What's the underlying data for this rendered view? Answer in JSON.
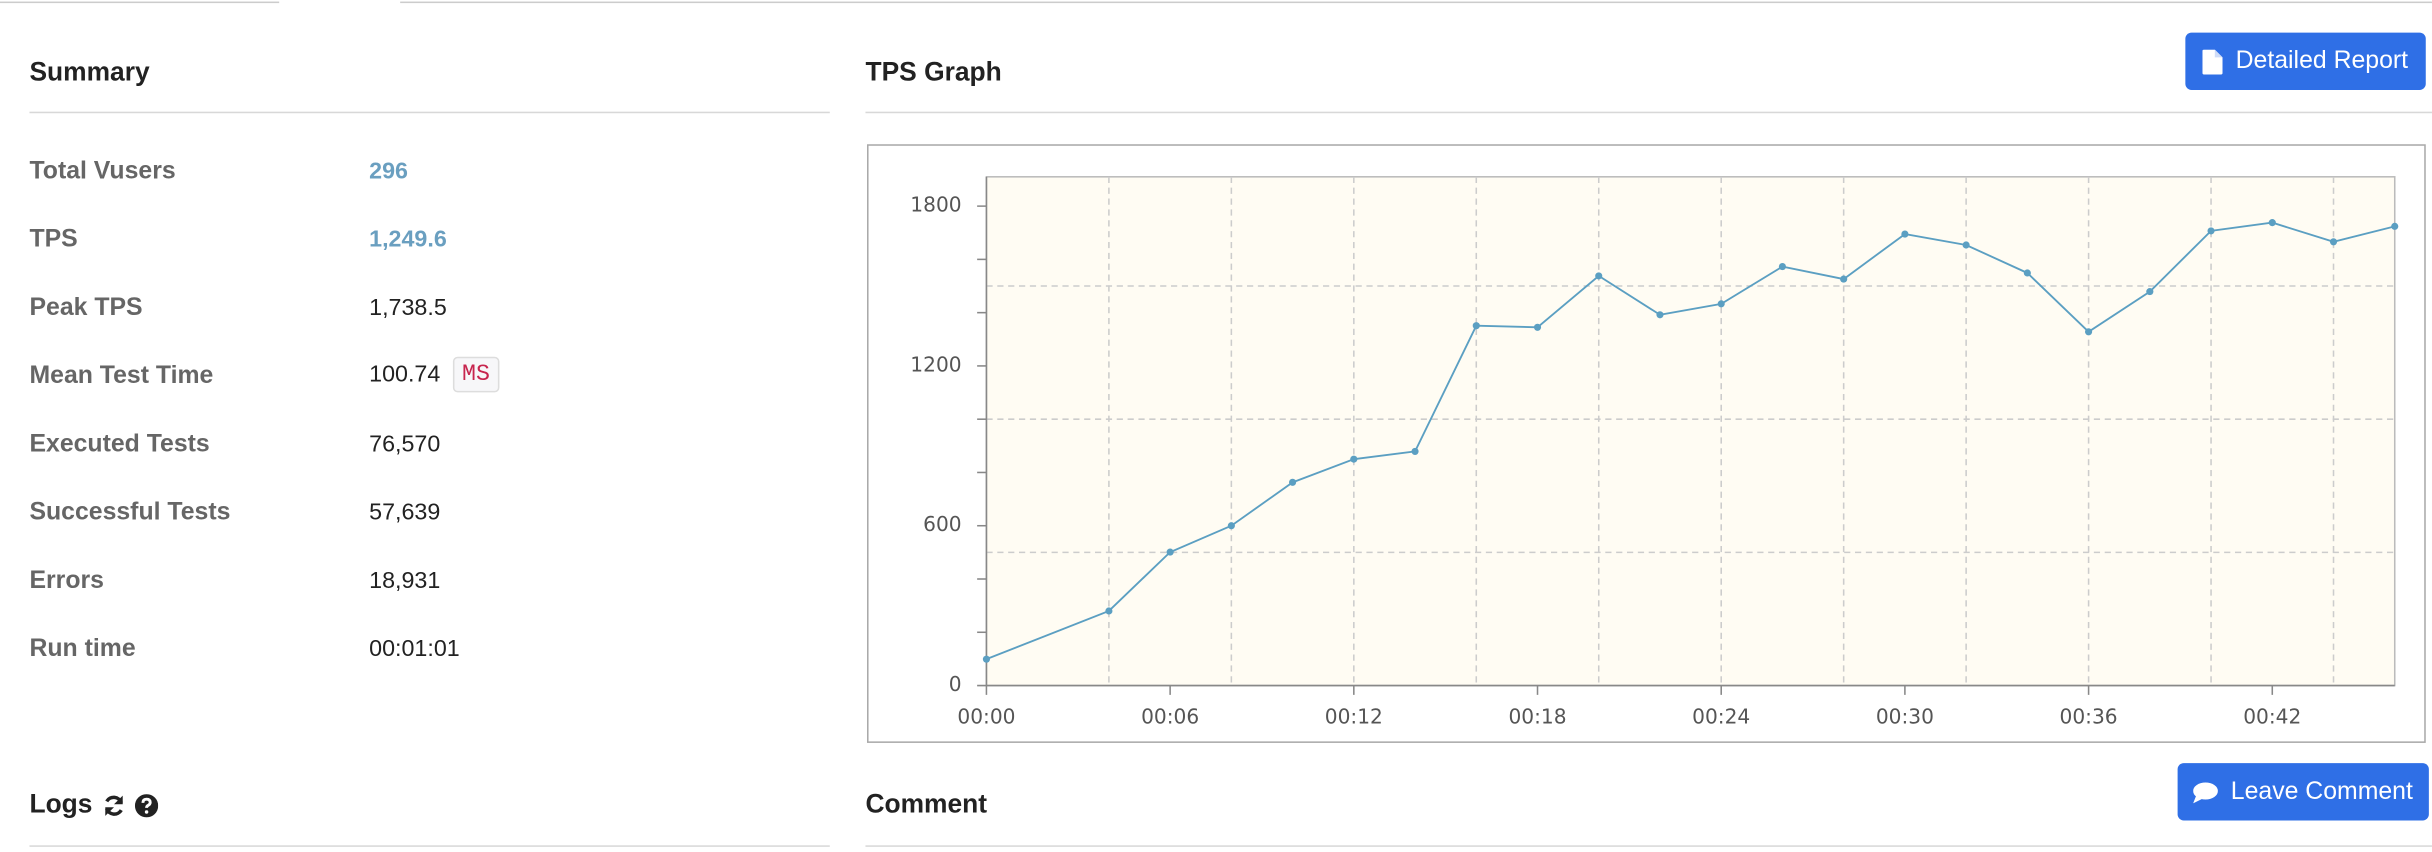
{
  "summary": {
    "title": "Summary",
    "rows": [
      {
        "label": "Total Vusers",
        "value": "296"
      },
      {
        "label": "TPS",
        "value": "1,249.6"
      },
      {
        "label": "Peak TPS",
        "value": "1,738.5"
      },
      {
        "label": "Mean Test Time",
        "value": "100.74",
        "unit": "MS"
      },
      {
        "label": "Executed Tests",
        "value": "76,570"
      },
      {
        "label": "Successful Tests",
        "value": "57,639"
      },
      {
        "label": "Errors",
        "value": "18,931"
      },
      {
        "label": "Run time",
        "value": "00:01:01"
      }
    ]
  },
  "tps_graph": {
    "title": "TPS Graph",
    "button": "Detailed Report"
  },
  "logs": {
    "title": "Logs"
  },
  "comment": {
    "title": "Comment",
    "button": "Leave Comment"
  },
  "chart_data": {
    "type": "line",
    "x": [
      0,
      4,
      6,
      8,
      10,
      12,
      14,
      16,
      18,
      20,
      22,
      24,
      26,
      28,
      30,
      32,
      34,
      36,
      38,
      40,
      42,
      44,
      46
    ],
    "values": [
      99,
      280,
      501,
      600,
      763,
      850,
      879,
      1351,
      1345,
      1538,
      1392,
      1433,
      1573,
      1526,
      1695,
      1654,
      1549,
      1328,
      1479,
      1707,
      1738,
      1666,
      1724
    ],
    "color": "#5b9fc2",
    "background": "#fffcf3",
    "xlim": [
      0,
      46
    ],
    "ylim": [
      0,
      1910
    ],
    "xticks": [
      {
        "value": 0,
        "label": "00:00"
      },
      {
        "value": 6,
        "label": "00:06"
      },
      {
        "value": 12,
        "label": "00:12"
      },
      {
        "value": 18,
        "label": "00:18"
      },
      {
        "value": 24,
        "label": "00:24"
      },
      {
        "value": 30,
        "label": "00:30"
      },
      {
        "value": 36,
        "label": "00:36"
      },
      {
        "value": 42,
        "label": "00:42"
      }
    ],
    "yticks": [
      0,
      600,
      1200,
      1800
    ],
    "yticks_minor": [
      200,
      400,
      800,
      1000,
      1400,
      1600
    ],
    "xgrid": [
      4,
      8,
      12,
      16,
      20,
      24,
      28,
      32,
      36,
      40,
      44
    ],
    "ygrid": [
      500,
      1000,
      1500
    ],
    "grid": true
  }
}
